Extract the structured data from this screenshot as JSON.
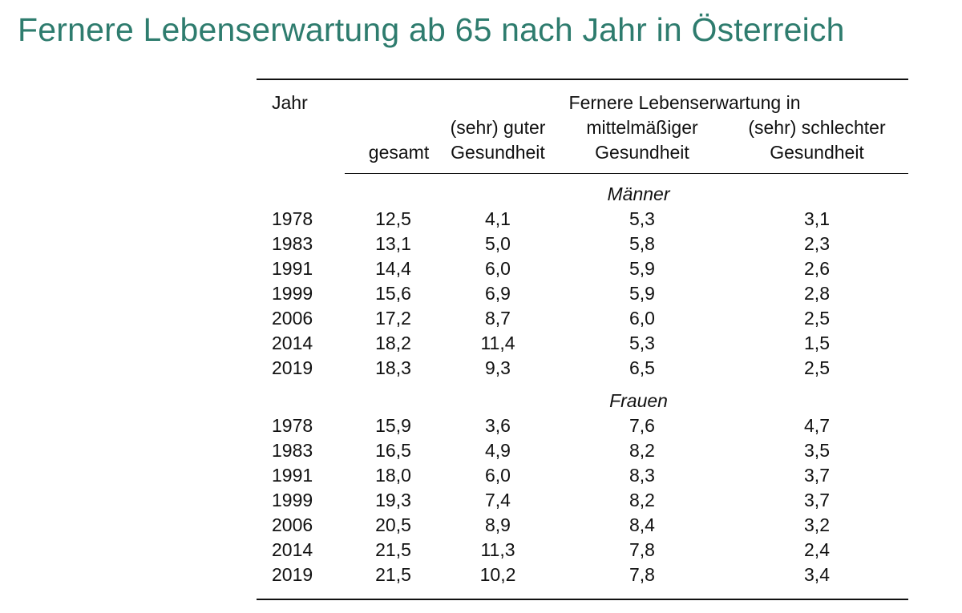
{
  "title": "Fernere Lebenserwartung ab 65 nach Jahr in Österreich",
  "table": {
    "header": {
      "jahr": "Jahr",
      "span_label": "Fernere Lebenserwartung in",
      "gesamt": "gesamt",
      "gut_line1": "(sehr) guter",
      "gut_line2": "Gesundheit",
      "mittel_line1": "mittelmäßiger",
      "mittel_line2": "Gesundheit",
      "schlecht_line1": "(sehr) schlechter",
      "schlecht_line2": "Gesundheit"
    },
    "groups": [
      {
        "label": "Männer",
        "rows": [
          {
            "jahr": "1978",
            "gesamt": "12,5",
            "gut": "4,1",
            "mittel": "5,3",
            "schlecht": "3,1"
          },
          {
            "jahr": "1983",
            "gesamt": "13,1",
            "gut": "5,0",
            "mittel": "5,8",
            "schlecht": "2,3"
          },
          {
            "jahr": "1991",
            "gesamt": "14,4",
            "gut": "6,0",
            "mittel": "5,9",
            "schlecht": "2,6"
          },
          {
            "jahr": "1999",
            "gesamt": "15,6",
            "gut": "6,9",
            "mittel": "5,9",
            "schlecht": "2,8"
          },
          {
            "jahr": "2006",
            "gesamt": "17,2",
            "gut": "8,7",
            "mittel": "6,0",
            "schlecht": "2,5"
          },
          {
            "jahr": "2014",
            "gesamt": "18,2",
            "gut": "11,4",
            "mittel": "5,3",
            "schlecht": "1,5"
          },
          {
            "jahr": "2019",
            "gesamt": "18,3",
            "gut": "9,3",
            "mittel": "6,5",
            "schlecht": "2,5"
          }
        ]
      },
      {
        "label": "Frauen",
        "rows": [
          {
            "jahr": "1978",
            "gesamt": "15,9",
            "gut": "3,6",
            "mittel": "7,6",
            "schlecht": "4,7"
          },
          {
            "jahr": "1983",
            "gesamt": "16,5",
            "gut": "4,9",
            "mittel": "8,2",
            "schlecht": "3,5"
          },
          {
            "jahr": "1991",
            "gesamt": "18,0",
            "gut": "6,0",
            "mittel": "8,3",
            "schlecht": "3,7"
          },
          {
            "jahr": "1999",
            "gesamt": "19,3",
            "gut": "7,4",
            "mittel": "8,2",
            "schlecht": "3,7"
          },
          {
            "jahr": "2006",
            "gesamt": "20,5",
            "gut": "8,9",
            "mittel": "8,4",
            "schlecht": "3,2"
          },
          {
            "jahr": "2014",
            "gesamt": "21,5",
            "gut": "11,3",
            "mittel": "7,8",
            "schlecht": "2,4"
          },
          {
            "jahr": "2019",
            "gesamt": "21,5",
            "gut": "10,2",
            "mittel": "7,8",
            "schlecht": "3,4"
          }
        ]
      }
    ]
  },
  "colors": {
    "title": "#2e7c6e",
    "text": "#111111",
    "rule": "#111111"
  }
}
